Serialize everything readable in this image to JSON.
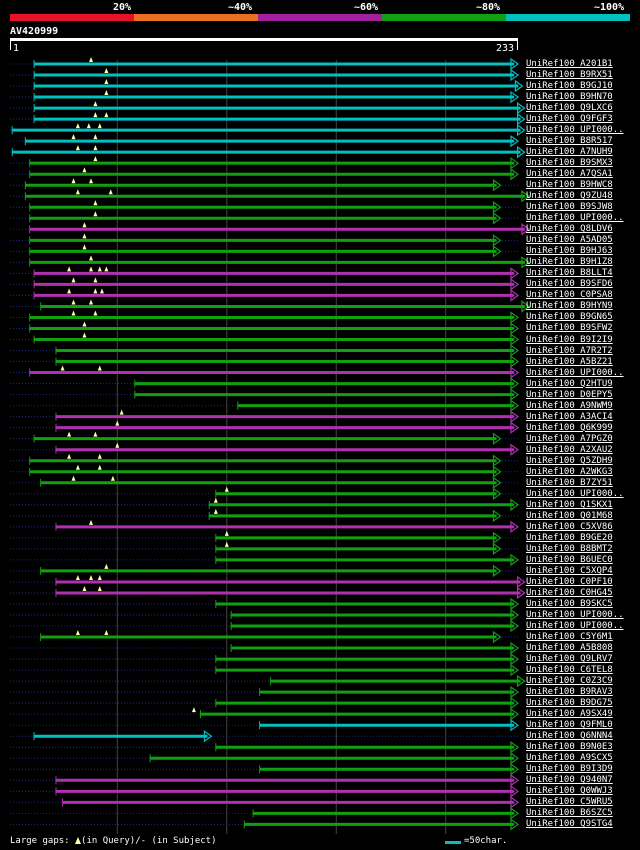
{
  "scale": {
    "labels": [
      "20%",
      "~40%",
      "~60%",
      "~80%",
      "~100%"
    ],
    "colors": [
      "#e8102a",
      "#e87020",
      "#a020a0",
      "#10a010",
      "#00c0c0"
    ]
  },
  "query": {
    "name": "AV420999",
    "start": "1",
    "end": "233",
    "length": 233
  },
  "hits": [
    {
      "label": "UniRef100_A201B1",
      "c": "cyan",
      "s": 12,
      "e": 233,
      "m": [
        38
      ]
    },
    {
      "label": "UniRef100_B9RX51",
      "c": "cyan",
      "s": 12,
      "e": 233,
      "m": [
        45
      ]
    },
    {
      "label": "UniRef100_B9GJ10",
      "c": "cyan",
      "s": 12,
      "e": 235,
      "m": [
        45
      ]
    },
    {
      "label": "UniRef100_B9HN70",
      "c": "cyan",
      "s": 12,
      "e": 233,
      "m": [
        45
      ]
    },
    {
      "label": "UniRef100_Q9LXC6",
      "c": "cyan",
      "s": 12,
      "e": 236,
      "m": [
        40
      ]
    },
    {
      "label": "UniRef100_Q9FGF3",
      "c": "cyan",
      "s": 12,
      "e": 236,
      "m": [
        40,
        45
      ]
    },
    {
      "label": "UniRef100_UPI000..",
      "c": "cyan",
      "s": 2,
      "e": 236,
      "m": [
        32,
        37,
        42
      ]
    },
    {
      "label": "UniRef100_B8R517",
      "c": "cyan",
      "s": 8,
      "e": 233,
      "m": [
        30,
        40
      ]
    },
    {
      "label": "UniRef100_A7NUH9",
      "c": "cyan",
      "s": 2,
      "e": 236,
      "m": [
        32,
        40
      ]
    },
    {
      "label": "UniRef100_B9SMX3",
      "c": "green",
      "s": 10,
      "e": 233,
      "m": [
        40
      ]
    },
    {
      "label": "UniRef100_A7QSA1",
      "c": "green",
      "s": 10,
      "e": 233,
      "m": [
        35
      ]
    },
    {
      "label": "UniRef100_B9HWC8",
      "c": "green",
      "s": 8,
      "e": 225,
      "m": [
        30,
        38
      ]
    },
    {
      "label": "UniRef100_Q9ZU48",
      "c": "green",
      "s": 8,
      "e": 238,
      "m": [
        32,
        47
      ]
    },
    {
      "label": "UniRef100_B9SJW8",
      "c": "green",
      "s": 10,
      "e": 225,
      "m": [
        40
      ]
    },
    {
      "label": "UniRef100_UPI000..",
      "c": "green",
      "s": 10,
      "e": 225,
      "m": [
        40
      ]
    },
    {
      "label": "UniRef100_Q8LDV6",
      "c": "magenta",
      "s": 10,
      "e": 238,
      "m": [
        35
      ]
    },
    {
      "label": "UniRef100_A5AD05",
      "c": "green",
      "s": 10,
      "e": 225,
      "m": [
        35
      ]
    },
    {
      "label": "UniRef100_B9HJ63",
      "c": "green",
      "s": 10,
      "e": 225,
      "m": [
        35
      ]
    },
    {
      "label": "UniRef100_B9H1Z8",
      "c": "green",
      "s": 10,
      "e": 238,
      "m": [
        38
      ]
    },
    {
      "label": "UniRef100_B8LLT4",
      "c": "magenta",
      "s": 12,
      "e": 233,
      "m": [
        28,
        38,
        42,
        45
      ]
    },
    {
      "label": "UniRef100_B9SFD6",
      "c": "magenta",
      "s": 12,
      "e": 233,
      "m": [
        30,
        40
      ]
    },
    {
      "label": "UniRef100_C0PSA8",
      "c": "magenta",
      "s": 12,
      "e": 233,
      "m": [
        28,
        40,
        43
      ]
    },
    {
      "label": "UniRef100_B9HYN9",
      "c": "green",
      "s": 15,
      "e": 238,
      "m": [
        30,
        38
      ]
    },
    {
      "label": "UniRef100_B9GN65",
      "c": "green",
      "s": 10,
      "e": 233,
      "m": [
        30,
        40
      ]
    },
    {
      "label": "UniRef100_B9SFW2",
      "c": "green",
      "s": 10,
      "e": 233,
      "m": [
        35
      ]
    },
    {
      "label": "UniRef100_B9I2I9",
      "c": "green",
      "s": 12,
      "e": 233,
      "m": [
        35
      ]
    },
    {
      "label": "UniRef100_A7R2T2",
      "c": "green",
      "s": 22,
      "e": 233,
      "m": []
    },
    {
      "label": "UniRef100_A5BZ21",
      "c": "green",
      "s": 22,
      "e": 233,
      "m": []
    },
    {
      "label": "UniRef100_UPI000..",
      "c": "magenta",
      "s": 10,
      "e": 233,
      "m": [
        25,
        42
      ]
    },
    {
      "label": "UniRef100_Q2HTU9",
      "c": "green",
      "s": 58,
      "e": 233,
      "m": []
    },
    {
      "label": "UniRef100_D0EPY5",
      "c": "green",
      "s": 58,
      "e": 233,
      "m": []
    },
    {
      "label": "UniRef100_A9NWM9",
      "c": "green",
      "s": 105,
      "e": 233,
      "m": []
    },
    {
      "label": "UniRef100_A3ACI4",
      "c": "magenta",
      "s": 22,
      "e": 233,
      "m": [
        52
      ]
    },
    {
      "label": "UniRef100_Q6K999",
      "c": "magenta",
      "s": 22,
      "e": 233,
      "m": [
        50
      ]
    },
    {
      "label": "UniRef100_A7PGZ0",
      "c": "green",
      "s": 12,
      "e": 225,
      "m": [
        28,
        40
      ]
    },
    {
      "label": "UniRef100_A2XAU2",
      "c": "magenta",
      "s": 22,
      "e": 233,
      "m": [
        50
      ]
    },
    {
      "label": "UniRef100_Q5ZDH9",
      "c": "green",
      "s": 10,
      "e": 225,
      "m": [
        28,
        42
      ]
    },
    {
      "label": "UniRef100_A2WKG3",
      "c": "green",
      "s": 10,
      "e": 225,
      "m": [
        32,
        42
      ]
    },
    {
      "label": "UniRef100_B7ZY51",
      "c": "green",
      "s": 15,
      "e": 225,
      "m": [
        30,
        48
      ]
    },
    {
      "label": "UniRef100_UPI000..",
      "c": "green",
      "s": 95,
      "e": 225,
      "m": [
        100
      ]
    },
    {
      "label": "UniRef100_Q1SKX1",
      "c": "green",
      "s": 92,
      "e": 233,
      "m": [
        95
      ]
    },
    {
      "label": "UniRef100_Q01M68",
      "c": "green",
      "s": 92,
      "e": 225,
      "m": [
        95
      ]
    },
    {
      "label": "UniRef100_C5XV86",
      "c": "magenta",
      "s": 22,
      "e": 233,
      "m": [
        38
      ]
    },
    {
      "label": "UniRef100_B9GE20",
      "c": "green",
      "s": 95,
      "e": 225,
      "m": [
        100
      ]
    },
    {
      "label": "UniRef100_B8BMT2",
      "c": "green",
      "s": 95,
      "e": 225,
      "m": [
        100
      ]
    },
    {
      "label": "UniRef100_B6UEC0",
      "c": "green",
      "s": 95,
      "e": 233,
      "m": []
    },
    {
      "label": "UniRef100_C5XQP4",
      "c": "green",
      "s": 15,
      "e": 225,
      "m": [
        45
      ]
    },
    {
      "label": "UniRef100_C0PF10",
      "c": "magenta",
      "s": 22,
      "e": 236,
      "m": [
        32,
        38,
        42
      ]
    },
    {
      "label": "UniRef100_C0HG45",
      "c": "magenta",
      "s": 22,
      "e": 236,
      "m": [
        35,
        42
      ]
    },
    {
      "label": "UniRef100_B9SKC5",
      "c": "green",
      "s": 95,
      "e": 233,
      "m": []
    },
    {
      "label": "UniRef100_UPI000..",
      "c": "green",
      "s": 102,
      "e": 233,
      "m": []
    },
    {
      "label": "UniRef100_UPI000..",
      "c": "green",
      "s": 102,
      "e": 233,
      "m": []
    },
    {
      "label": "UniRef100_C5Y6M1",
      "c": "green",
      "s": 15,
      "e": 225,
      "m": [
        32,
        45
      ]
    },
    {
      "label": "UniRef100_A5B808",
      "c": "green",
      "s": 102,
      "e": 233,
      "m": []
    },
    {
      "label": "UniRef100_Q9LRV7",
      "c": "green",
      "s": 95,
      "e": 233,
      "m": []
    },
    {
      "label": "UniRef100_C6TEL8",
      "c": "green",
      "s": 95,
      "e": 233,
      "m": []
    },
    {
      "label": "UniRef100_C0Z3C9",
      "c": "green",
      "s": 120,
      "e": 236,
      "m": []
    },
    {
      "label": "UniRef100_B9RAV3",
      "c": "green",
      "s": 115,
      "e": 233,
      "m": []
    },
    {
      "label": "UniRef100_B9DG75",
      "c": "green",
      "s": 95,
      "e": 233,
      "m": []
    },
    {
      "label": "UniRef100_A9SX49",
      "c": "green",
      "s": 88,
      "e": 233,
      "m": [
        85
      ]
    },
    {
      "label": "UniRef100_Q9FML0",
      "c": "cyan",
      "s": 115,
      "e": 233,
      "m": []
    },
    {
      "label": "UniRef100_Q6NNN4",
      "c": "cyan",
      "s": 12,
      "e": 93,
      "m": []
    },
    {
      "label": "UniRef100_B9N0E3",
      "c": "green",
      "s": 95,
      "e": 233,
      "m": []
    },
    {
      "label": "UniRef100_A9SCX5",
      "c": "green",
      "s": 65,
      "e": 233,
      "m": []
    },
    {
      "label": "UniRef100_B9I3D9",
      "c": "green",
      "s": 115,
      "e": 233,
      "m": []
    },
    {
      "label": "UniRef100_Q940N7",
      "c": "magenta",
      "s": 22,
      "e": 233,
      "m": []
    },
    {
      "label": "UniRef100_Q0WWJ3",
      "c": "magenta",
      "s": 22,
      "e": 233,
      "m": []
    },
    {
      "label": "UniRef100_C5WRU5",
      "c": "magenta",
      "s": 25,
      "e": 233,
      "m": []
    },
    {
      "label": "UniRef100_B6SZC5",
      "c": "green",
      "s": 112,
      "e": 233,
      "m": []
    },
    {
      "label": "UniRef100_Q9STG4",
      "c": "green",
      "s": 108,
      "e": 233,
      "m": []
    }
  ],
  "colors": {
    "cyan": "#00c0c0",
    "green": "#10a010",
    "magenta": "#b030b0",
    "marker": "#ffffaa",
    "grid": "#444444"
  },
  "footer": {
    "prefix": "Large gaps:",
    "query_text": "(in Query)/",
    "dash": "-",
    "subject_text": " (in Subject)",
    "legend": "=50char."
  }
}
